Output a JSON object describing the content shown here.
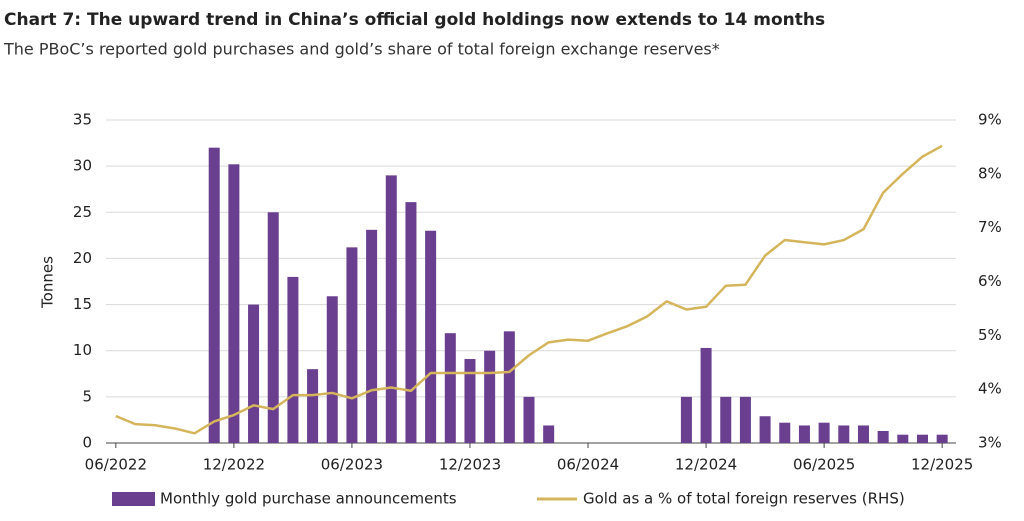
{
  "chart_data": {
    "type": "bar",
    "title": "Chart 7: The upward trend in China’s official gold holdings now extends to 14 months",
    "subtitle": "The PBoC’s reported gold purchases and gold’s share of total foreign exchange reserves*",
    "y_label": "Tonnes",
    "categories": [
      "06/2022",
      null,
      null,
      null,
      null,
      null,
      "12/2022",
      null,
      null,
      null,
      null,
      null,
      "06/2023",
      null,
      null,
      null,
      null,
      null,
      "12/2023",
      null,
      null,
      null,
      null,
      null,
      "06/2024",
      null,
      null,
      null,
      null,
      null,
      "12/2024",
      null,
      null,
      null,
      null,
      null,
      "06/2025",
      null,
      null,
      null,
      null,
      null,
      "12/2025"
    ],
    "series": [
      {
        "name": "Monthly gold purchase announcements",
        "type": "bar",
        "color": "#6b3f8f",
        "values": [
          null,
          null,
          null,
          null,
          null,
          32,
          30.2,
          15,
          25,
          18,
          8,
          15.9,
          21.2,
          23.1,
          29,
          26.1,
          23,
          11.9,
          9.1,
          10,
          12.1,
          5,
          1.9,
          null,
          null,
          null,
          null,
          null,
          null,
          5,
          10.3,
          5,
          5,
          2.9,
          2.2,
          1.9,
          2.2,
          1.9,
          1.9,
          1.3,
          0.9,
          0.9,
          0.9
        ]
      },
      {
        "name": "Gold as a % of total foreign reserves (RHS)",
        "type": "line",
        "color": "#d4b55c",
        "axis": "y2",
        "values": [
          3.5,
          3.35,
          3.33,
          3.27,
          3.18,
          3.4,
          3.52,
          3.7,
          3.63,
          3.89,
          3.89,
          3.93,
          3.83,
          3.98,
          4.03,
          3.97,
          4.3,
          4.3,
          4.3,
          4.3,
          4.32,
          4.63,
          4.87,
          4.92,
          4.9,
          5.04,
          5.17,
          5.35,
          5.63,
          5.48,
          5.53,
          5.92,
          5.94,
          6.48,
          6.77,
          6.73,
          6.69,
          6.77,
          6.97,
          7.65,
          8.0,
          8.32,
          8.52
        ]
      }
    ],
    "ylim": [
      0,
      35
    ],
    "yticks": [
      0,
      5,
      10,
      15,
      20,
      25,
      30,
      35
    ],
    "y2lim": [
      3,
      9
    ],
    "y2ticks": [
      {
        "value": 3,
        "label": "3%"
      },
      {
        "value": 4,
        "label": "4%"
      },
      {
        "value": 5,
        "label": "5%"
      },
      {
        "value": 6,
        "label": "6%"
      },
      {
        "value": 7,
        "label": "7%"
      },
      {
        "value": 8,
        "label": "8%"
      },
      {
        "value": 9,
        "label": "9%"
      }
    ],
    "grid": true,
    "legend": "bottom"
  }
}
